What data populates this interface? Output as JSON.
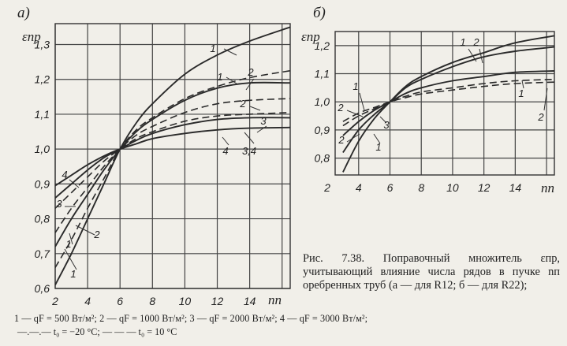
{
  "caption": {
    "text": "Рис. 7.38. Поправочный множитель εпр, учитывающий влияние числа рядов в пучке nп оребренных труб (а — для R12; б — для R22);",
    "legend_line1": "1 — qF = 500 Вт/м²; 2 — qF = 1000 Вт/м²; 3 — qF = 2000 Вт/м²; 4 — qF = 3000 Вт/м²;",
    "legend_line2": "—.—.— t₀ = −20 °C; — — — t₀ = 10 °C"
  },
  "chart_data": [
    {
      "type": "line",
      "panel_label": "а)",
      "title": "",
      "xlabel": "nп",
      "ylabel": "εпр",
      "xlim": [
        2,
        16.5
      ],
      "ylim": [
        0.6,
        1.36
      ],
      "x_ticks": [
        "2",
        "4",
        "6",
        "8",
        "10",
        "12",
        "14"
      ],
      "y_ticks": [
        "0,6",
        "0,7",
        "0,8",
        "0,9",
        "1,0",
        "1,1",
        "1,2",
        "1,3"
      ],
      "grid": true,
      "series": [
        {
          "name": "1",
          "style": "solid",
          "x": [
            2,
            3,
            4,
            5,
            6,
            7,
            8,
            10,
            12,
            14,
            16.5
          ],
          "y": [
            0.61,
            0.7,
            0.8,
            0.9,
            1.0,
            1.075,
            1.13,
            1.215,
            1.27,
            1.31,
            1.35
          ]
        },
        {
          "name": "1",
          "style": "dashed",
          "x": [
            2,
            3,
            4,
            5,
            6,
            7,
            8,
            10,
            12,
            14,
            16.5
          ],
          "y": [
            0.66,
            0.74,
            0.83,
            0.915,
            1.0,
            1.055,
            1.09,
            1.145,
            1.18,
            1.205,
            1.225
          ]
        },
        {
          "name": "2",
          "style": "solid",
          "x": [
            2,
            3,
            4,
            5,
            6,
            7,
            8,
            10,
            12,
            14,
            16.5
          ],
          "y": [
            0.72,
            0.8,
            0.87,
            0.94,
            1.0,
            1.05,
            1.085,
            1.14,
            1.175,
            1.19,
            1.19
          ]
        },
        {
          "name": "2",
          "style": "dashed",
          "x": [
            2,
            3,
            4,
            5,
            6,
            7,
            8,
            10,
            12,
            14,
            16.5
          ],
          "y": [
            0.76,
            0.83,
            0.89,
            0.95,
            1.0,
            1.04,
            1.065,
            1.105,
            1.13,
            1.14,
            1.145
          ]
        },
        {
          "name": "3",
          "style": "dashed",
          "x": [
            2,
            3,
            4,
            5,
            6,
            7,
            8,
            10,
            12,
            14,
            16.5
          ],
          "y": [
            0.83,
            0.875,
            0.92,
            0.965,
            1.0,
            1.03,
            1.05,
            1.08,
            1.095,
            1.1,
            1.105
          ]
        },
        {
          "name": "3,4",
          "style": "solid",
          "x": [
            2,
            3,
            4,
            5,
            6,
            7,
            8,
            10,
            12,
            14,
            16.5
          ],
          "y": [
            0.86,
            0.9,
            0.94,
            0.975,
            1.0,
            1.025,
            1.045,
            1.07,
            1.085,
            1.09,
            1.09
          ]
        },
        {
          "name": "4",
          "style": "solid",
          "x": [
            2,
            3,
            4,
            5,
            6,
            7,
            8,
            10,
            12,
            14,
            16.5
          ],
          "y": [
            0.895,
            0.925,
            0.955,
            0.98,
            1.0,
            1.015,
            1.03,
            1.045,
            1.055,
            1.06,
            1.062
          ]
        }
      ]
    },
    {
      "type": "line",
      "panel_label": "б)",
      "title": "",
      "xlabel": "nп",
      "ylabel": "εпр",
      "xlim": [
        2.5,
        16.5
      ],
      "ylim": [
        0.74,
        1.25
      ],
      "x_ticks": [
        "2",
        "4",
        "6",
        "8",
        "10",
        "12",
        "14"
      ],
      "y_ticks": [
        "0,8",
        "0,9",
        "1,0",
        "1,1",
        "1,2"
      ],
      "grid": true,
      "series": [
        {
          "name": "1",
          "style": "solid",
          "x": [
            3,
            4,
            5,
            6,
            7,
            8,
            10,
            12,
            14,
            16.5
          ],
          "y": [
            0.75,
            0.86,
            0.94,
            1.0,
            1.055,
            1.09,
            1.14,
            1.175,
            1.21,
            1.235
          ]
        },
        {
          "name": "2",
          "style": "solid",
          "x": [
            3,
            4,
            5,
            6,
            7,
            8,
            10,
            12,
            14,
            16.5
          ],
          "y": [
            0.82,
            0.9,
            0.955,
            1.0,
            1.05,
            1.08,
            1.125,
            1.16,
            1.18,
            1.195
          ]
        },
        {
          "name": "3",
          "style": "solid",
          "x": [
            3,
            4,
            5,
            6,
            7,
            8,
            10,
            12,
            14,
            16.5
          ],
          "y": [
            0.88,
            0.93,
            0.97,
            1.0,
            1.03,
            1.05,
            1.075,
            1.09,
            1.105,
            1.11
          ]
        },
        {
          "name": "1",
          "style": "dashed",
          "x": [
            3,
            4,
            5,
            6,
            7,
            8,
            10,
            12,
            14,
            16.5
          ],
          "y": [
            0.915,
            0.95,
            0.975,
            1.0,
            1.02,
            1.035,
            1.05,
            1.065,
            1.075,
            1.08
          ]
        },
        {
          "name": "2",
          "style": "dashed",
          "x": [
            3,
            4,
            5,
            6,
            7,
            8,
            10,
            12,
            14,
            16.5
          ],
          "y": [
            0.93,
            0.96,
            0.98,
            1.0,
            1.015,
            1.028,
            1.042,
            1.055,
            1.065,
            1.07
          ]
        }
      ]
    }
  ]
}
